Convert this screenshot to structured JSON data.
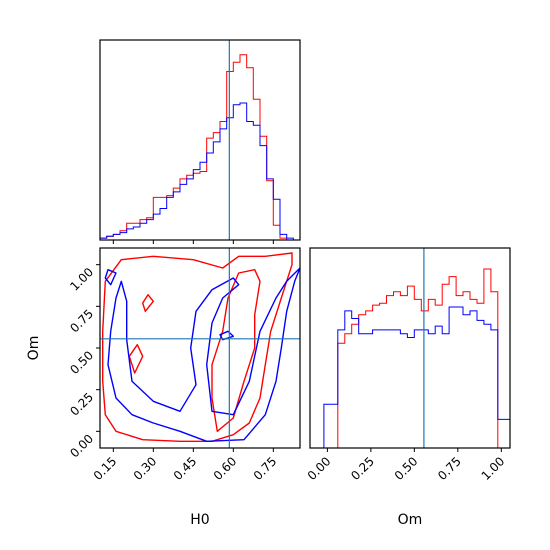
{
  "chart_data": {
    "type": "corner",
    "params": [
      "H0",
      "Om"
    ],
    "truth": {
      "H0": 0.585,
      "Om": 0.555
    },
    "colors": {
      "red_series": "#ff0000",
      "blue_series": "#0000ff",
      "truth_line": "#1f77b4"
    },
    "panels": [
      {
        "id": "hist-H0",
        "type": "step-histogram",
        "x_param": "H0",
        "xlim": [
          0.1,
          0.85
        ],
        "bin_edges": [
          0.1,
          0.125,
          0.15,
          0.175,
          0.2,
          0.225,
          0.25,
          0.275,
          0.3,
          0.325,
          0.35,
          0.375,
          0.4,
          0.425,
          0.45,
          0.475,
          0.5,
          0.525,
          0.55,
          0.575,
          0.6,
          0.625,
          0.65,
          0.675,
          0.7,
          0.725,
          0.75,
          0.775,
          0.8,
          0.825,
          0.85
        ],
        "series": [
          {
            "color": "red",
            "values": [
              0.01,
              0.02,
              0.03,
              0.05,
              0.09,
              0.09,
              0.11,
              0.12,
              0.23,
              0.23,
              0.24,
              0.28,
              0.33,
              0.35,
              0.36,
              0.37,
              0.55,
              0.58,
              0.64,
              0.91,
              0.96,
              1.0,
              0.93,
              0.76,
              0.56,
              0.32,
              0.08,
              0.01,
              0.0,
              0.0
            ]
          },
          {
            "color": "blue",
            "values": [
              0.01,
              0.02,
              0.03,
              0.04,
              0.06,
              0.07,
              0.09,
              0.11,
              0.14,
              0.17,
              0.23,
              0.26,
              0.3,
              0.33,
              0.38,
              0.42,
              0.47,
              0.53,
              0.6,
              0.66,
              0.73,
              0.74,
              0.64,
              0.62,
              0.51,
              0.33,
              0.22,
              0.03,
              0.01,
              0.0
            ]
          }
        ],
        "ylim": [
          0,
          1.08
        ]
      },
      {
        "id": "contour-H0-Om",
        "type": "contour",
        "x_param": "H0",
        "y_param": "Om",
        "xlim": [
          0.1,
          0.85
        ],
        "ylim": [
          -0.1,
          1.1
        ],
        "x_ticks": [
          "0.15",
          "0.30",
          "0.45",
          "0.60",
          "0.75"
        ],
        "x_tick_values": [
          0.15,
          0.3,
          0.45,
          0.6,
          0.75
        ],
        "y_ticks": [
          "0.00",
          "0.25",
          "0.50",
          "0.75",
          "1.00"
        ],
        "y_tick_values": [
          0.0,
          0.25,
          0.5,
          0.75,
          1.0
        ],
        "xlabel": "H0",
        "ylabel": "Om",
        "contours": [
          {
            "color": "red",
            "points": [
              [
                0.12,
                0.1
              ],
              [
                0.16,
                0.0
              ],
              [
                0.26,
                -0.05
              ],
              [
                0.4,
                -0.06
              ],
              [
                0.52,
                -0.06
              ],
              [
                0.6,
                -0.02
              ],
              [
                0.66,
                0.05
              ],
              [
                0.7,
                0.2
              ],
              [
                0.72,
                0.4
              ],
              [
                0.74,
                0.6
              ],
              [
                0.78,
                0.8
              ],
              [
                0.82,
                1.0
              ],
              [
                0.82,
                1.07
              ],
              [
                0.72,
                1.05
              ],
              [
                0.62,
                1.05
              ],
              [
                0.56,
                0.98
              ],
              [
                0.45,
                1.03
              ],
              [
                0.3,
                1.05
              ],
              [
                0.18,
                1.03
              ],
              [
                0.12,
                0.9
              ],
              [
                0.11,
                0.6
              ],
              [
                0.11,
                0.3
              ],
              [
                0.12,
                0.1
              ]
            ]
          },
          {
            "color": "red",
            "points": [
              [
                0.54,
                0.0
              ],
              [
                0.6,
                0.08
              ],
              [
                0.64,
                0.3
              ],
              [
                0.68,
                0.5
              ],
              [
                0.68,
                0.7
              ],
              [
                0.7,
                0.9
              ],
              [
                0.68,
                0.97
              ],
              [
                0.62,
                0.95
              ],
              [
                0.58,
                0.8
              ],
              [
                0.56,
                0.6
              ],
              [
                0.52,
                0.4
              ],
              [
                0.52,
                0.2
              ],
              [
                0.54,
                0.0
              ]
            ]
          },
          {
            "color": "red",
            "points": [
              [
                0.23,
                0.35
              ],
              [
                0.26,
                0.45
              ],
              [
                0.24,
                0.52
              ],
              [
                0.21,
                0.45
              ],
              [
                0.23,
                0.35
              ]
            ]
          },
          {
            "color": "red",
            "points": [
              [
                0.27,
                0.72
              ],
              [
                0.3,
                0.78
              ],
              [
                0.28,
                0.82
              ],
              [
                0.26,
                0.77
              ],
              [
                0.27,
                0.72
              ]
            ]
          },
          {
            "color": "blue",
            "points": [
              [
                0.16,
                0.2
              ],
              [
                0.22,
                0.1
              ],
              [
                0.3,
                0.05
              ],
              [
                0.4,
                0.0
              ],
              [
                0.5,
                -0.06
              ],
              [
                0.64,
                -0.05
              ],
              [
                0.72,
                0.1
              ],
              [
                0.76,
                0.3
              ],
              [
                0.78,
                0.5
              ],
              [
                0.8,
                0.72
              ],
              [
                0.83,
                0.9
              ],
              [
                0.85,
                0.98
              ],
              [
                0.8,
                0.9
              ],
              [
                0.76,
                0.8
              ],
              [
                0.7,
                0.6
              ],
              [
                0.66,
                0.3
              ],
              [
                0.6,
                0.1
              ],
              [
                0.52,
                0.12
              ],
              [
                0.5,
                0.4
              ],
              [
                0.52,
                0.65
              ],
              [
                0.56,
                0.8
              ],
              [
                0.62,
                0.88
              ],
              [
                0.6,
                0.92
              ],
              [
                0.52,
                0.85
              ],
              [
                0.46,
                0.72
              ],
              [
                0.44,
                0.5
              ],
              [
                0.46,
                0.28
              ],
              [
                0.4,
                0.12
              ],
              [
                0.3,
                0.18
              ],
              [
                0.22,
                0.3
              ],
              [
                0.2,
                0.55
              ],
              [
                0.2,
                0.78
              ],
              [
                0.18,
                0.9
              ],
              [
                0.16,
                0.8
              ],
              [
                0.14,
                0.6
              ],
              [
                0.13,
                0.4
              ],
              [
                0.16,
                0.2
              ]
            ]
          },
          {
            "color": "blue",
            "points": [
              [
                0.56,
                0.55
              ],
              [
                0.6,
                0.57
              ],
              [
                0.58,
                0.6
              ],
              [
                0.55,
                0.58
              ],
              [
                0.56,
                0.55
              ]
            ]
          },
          {
            "color": "blue",
            "points": [
              [
                0.14,
                0.88
              ],
              [
                0.16,
                0.95
              ],
              [
                0.13,
                0.97
              ],
              [
                0.12,
                0.92
              ],
              [
                0.14,
                0.88
              ]
            ]
          }
        ]
      },
      {
        "id": "hist-Om",
        "type": "step-histogram",
        "x_param": "Om",
        "xlim": [
          -0.1,
          1.05
        ],
        "x_ticks": [
          "0.00",
          "0.25",
          "0.50",
          "0.75",
          "1.00"
        ],
        "x_tick_values": [
          0.0,
          0.25,
          0.5,
          0.75,
          1.0
        ],
        "xlabel": "Om",
        "bin_edges": [
          -0.1,
          -0.06,
          -0.02,
          0.02,
          0.06,
          0.1,
          0.14,
          0.18,
          0.22,
          0.26,
          0.3,
          0.34,
          0.38,
          0.42,
          0.46,
          0.5,
          0.54,
          0.58,
          0.62,
          0.66,
          0.7,
          0.74,
          0.78,
          0.82,
          0.86,
          0.9,
          0.94,
          0.98,
          1.02,
          1.06
        ],
        "series": [
          {
            "color": "red",
            "values": [
              0.0,
              0.0,
              0.0,
              0.0,
              0.55,
              0.6,
              0.65,
              0.7,
              0.72,
              0.75,
              0.76,
              0.8,
              0.82,
              0.8,
              0.85,
              0.78,
              0.72,
              0.78,
              0.75,
              0.86,
              0.9,
              0.8,
              0.82,
              0.78,
              0.76,
              0.94,
              0.82,
              0.0,
              0.0
            ]
          },
          {
            "color": "blue",
            "values": [
              0.0,
              0.0,
              0.23,
              0.23,
              0.62,
              0.72,
              0.68,
              0.6,
              0.6,
              0.62,
              0.62,
              0.62,
              0.62,
              0.6,
              0.58,
              0.62,
              0.62,
              0.6,
              0.64,
              0.6,
              0.74,
              0.74,
              0.7,
              0.72,
              0.67,
              0.65,
              0.62,
              0.15,
              0.15
            ]
          }
        ],
        "ylim": [
          0,
          1.05
        ]
      }
    ]
  }
}
